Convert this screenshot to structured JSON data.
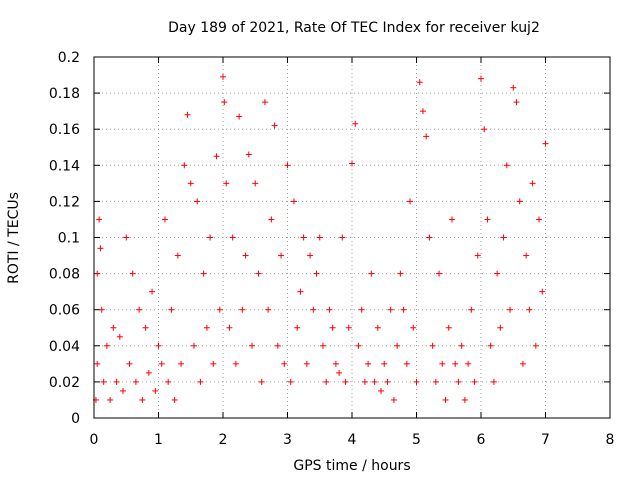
{
  "chart_data": {
    "type": "scatter",
    "title": "Day 189 of 2021, Rate Of TEC Index for receiver kuj2",
    "xlabel": "GPS time / hours",
    "ylabel": "ROTI / TECUs",
    "xlim": [
      0,
      8
    ],
    "ylim": [
      0,
      0.2
    ],
    "xticks": [
      "0",
      "1",
      "2",
      "3",
      "4",
      "5",
      "6",
      "7",
      "8"
    ],
    "yticks": [
      "0",
      "0.02",
      "0.04",
      "0.06",
      "0.08",
      "0.1",
      "0.12",
      "0.14",
      "0.16",
      "0.18",
      "0.2"
    ],
    "grid": true,
    "marker": "+",
    "color": "#ff0000",
    "series": [
      {
        "name": "ROTI",
        "x": [
          0.03,
          0.05,
          0.05,
          0.08,
          0.1,
          0.12,
          0.15,
          0.2,
          0.25,
          0.3,
          0.35,
          0.4,
          0.45,
          0.5,
          0.55,
          0.6,
          0.65,
          0.7,
          0.75,
          0.8,
          0.85,
          0.9,
          0.95,
          1.0,
          1.05,
          1.1,
          1.15,
          1.2,
          1.25,
          1.3,
          1.35,
          1.4,
          1.45,
          1.5,
          1.55,
          1.6,
          1.65,
          1.7,
          1.75,
          1.8,
          1.85,
          1.9,
          1.95,
          2.0,
          2.02,
          2.05,
          2.1,
          2.15,
          2.2,
          2.25,
          2.3,
          2.35,
          2.4,
          2.45,
          2.5,
          2.55,
          2.6,
          2.65,
          2.7,
          2.75,
          2.8,
          2.85,
          2.9,
          2.95,
          3.0,
          3.05,
          3.1,
          3.15,
          3.2,
          3.25,
          3.3,
          3.35,
          3.4,
          3.45,
          3.5,
          3.55,
          3.6,
          3.65,
          3.7,
          3.75,
          3.8,
          3.85,
          3.9,
          3.95,
          4.0,
          4.05,
          4.1,
          4.15,
          4.2,
          4.25,
          4.3,
          4.35,
          4.4,
          4.45,
          4.5,
          4.55,
          4.6,
          4.65,
          4.7,
          4.75,
          4.8,
          4.85,
          4.9,
          4.95,
          5.0,
          5.05,
          5.1,
          5.15,
          5.2,
          5.25,
          5.3,
          5.35,
          5.4,
          5.45,
          5.5,
          5.55,
          5.6,
          5.65,
          5.7,
          5.75,
          5.8,
          5.85,
          5.9,
          5.95,
          6.0,
          6.05,
          6.1,
          6.15,
          6.2,
          6.25,
          6.3,
          6.35,
          6.4,
          6.45,
          6.5,
          6.55,
          6.6,
          6.65,
          6.7,
          6.75,
          6.8,
          6.85,
          6.9,
          6.95,
          7.0
        ],
        "y": [
          0.01,
          0.08,
          0.03,
          0.11,
          0.094,
          0.06,
          0.02,
          0.04,
          0.01,
          0.05,
          0.02,
          0.045,
          0.015,
          0.1,
          0.03,
          0.08,
          0.02,
          0.06,
          0.01,
          0.05,
          0.025,
          0.07,
          0.015,
          0.04,
          0.03,
          0.11,
          0.02,
          0.06,
          0.01,
          0.09,
          0.03,
          0.14,
          0.168,
          0.13,
          0.04,
          0.12,
          0.02,
          0.08,
          0.05,
          0.1,
          0.03,
          0.145,
          0.06,
          0.189,
          0.175,
          0.13,
          0.05,
          0.1,
          0.03,
          0.167,
          0.06,
          0.09,
          0.146,
          0.04,
          0.13,
          0.08,
          0.02,
          0.175,
          0.06,
          0.11,
          0.162,
          0.04,
          0.09,
          0.03,
          0.14,
          0.02,
          0.12,
          0.05,
          0.07,
          0.1,
          0.03,
          0.09,
          0.06,
          0.08,
          0.1,
          0.04,
          0.02,
          0.06,
          0.05,
          0.03,
          0.025,
          0.1,
          0.02,
          0.05,
          0.141,
          0.163,
          0.04,
          0.06,
          0.02,
          0.03,
          0.08,
          0.02,
          0.05,
          0.015,
          0.03,
          0.02,
          0.06,
          0.01,
          0.04,
          0.08,
          0.06,
          0.03,
          0.12,
          0.05,
          0.02,
          0.186,
          0.17,
          0.156,
          0.1,
          0.04,
          0.02,
          0.08,
          0.03,
          0.01,
          0.05,
          0.11,
          0.03,
          0.02,
          0.04,
          0.01,
          0.03,
          0.06,
          0.02,
          0.09,
          0.188,
          0.16,
          0.11,
          0.04,
          0.02,
          0.08,
          0.05,
          0.1,
          0.14,
          0.06,
          0.183,
          0.175,
          0.12,
          0.03,
          0.09,
          0.06,
          0.13,
          0.04,
          0.11,
          0.07,
          0.152
        ]
      }
    ]
  }
}
